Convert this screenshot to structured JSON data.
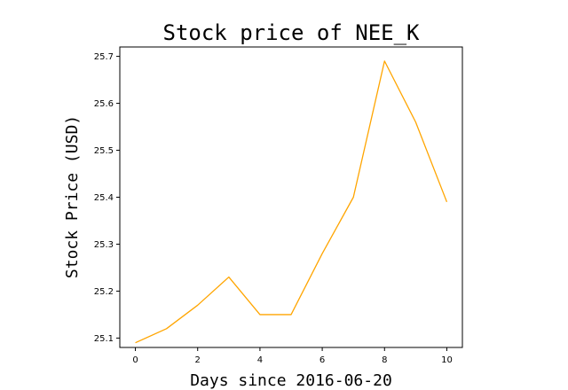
{
  "chart_data": {
    "type": "line",
    "title": "Stock price of NEE_K",
    "xlabel": "Days since 2016-06-20",
    "ylabel": "Stock Price (USD)",
    "xlim": [
      -0.5,
      10.5
    ],
    "ylim": [
      25.08,
      25.72
    ],
    "xticks": [
      0,
      2,
      4,
      6,
      8,
      10
    ],
    "xtick_labels": [
      "0",
      "2",
      "4",
      "6",
      "8",
      "10"
    ],
    "yticks": [
      25.1,
      25.2,
      25.3,
      25.4,
      25.5,
      25.6,
      25.7
    ],
    "ytick_labels": [
      "25.1",
      "25.2",
      "25.3",
      "25.4",
      "25.5",
      "25.6",
      "25.7"
    ],
    "grid": false,
    "series": [
      {
        "color": "#ffa500",
        "x": [
          0,
          1,
          2,
          3,
          4,
          5,
          6,
          7,
          8,
          9,
          10
        ],
        "y": [
          25.09,
          25.12,
          25.17,
          25.23,
          25.15,
          25.15,
          25.28,
          25.4,
          25.69,
          25.56,
          25.39
        ]
      }
    ]
  }
}
